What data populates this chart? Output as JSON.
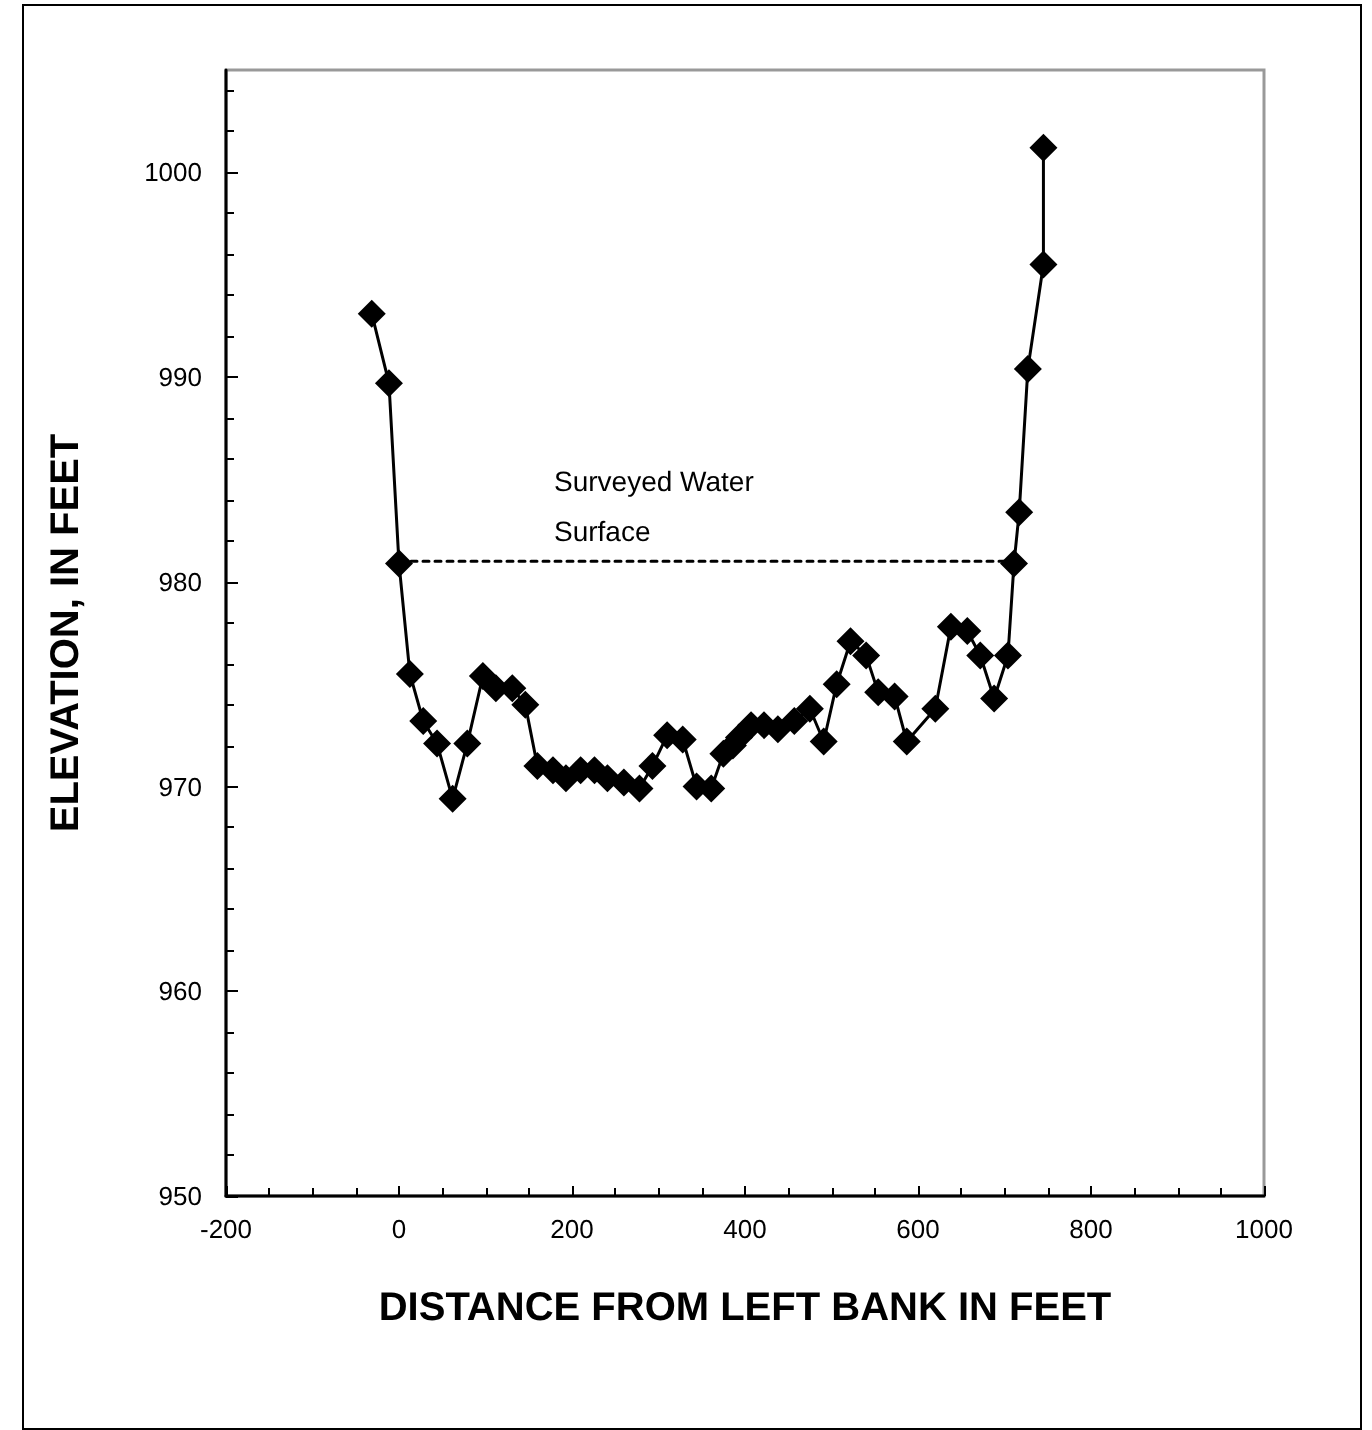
{
  "chart_data": {
    "type": "line",
    "xlabel": "DISTANCE FROM LEFT BANK IN FEET",
    "ylabel": "ELEVATION, IN FEET",
    "xlim": [
      -200,
      1000
    ],
    "xticks": [
      -200,
      0,
      200,
      400,
      600,
      800,
      1000
    ],
    "ylim": [
      950,
      1005
    ],
    "yticks": [
      950,
      960,
      970,
      980,
      990,
      1000
    ],
    "grid": false,
    "series": [
      {
        "color": "#000000",
        "marker": "diamond",
        "line_style": "solid",
        "x": [
          -31.5,
          -11.6,
          0,
          12.6,
          28,
          44,
          62,
          79,
          97,
          112,
          131,
          146,
          160,
          178,
          193,
          210,
          226,
          241,
          260,
          278,
          293,
          310,
          328,
          344,
          361,
          375,
          386,
          393,
          407,
          422,
          438,
          457,
          475,
          491,
          506,
          522,
          540,
          554,
          573,
          587,
          620,
          638,
          657,
          672,
          688,
          704,
          711,
          717,
          727,
          745,
          745
        ],
        "values": [
          993.1,
          989.7,
          980.9,
          975.5,
          973.2,
          972.1,
          969.4,
          972.1,
          975.4,
          974.8,
          974.8,
          974.0,
          971.0,
          970.8,
          970.4,
          970.8,
          970.8,
          970.4,
          970.2,
          969.9,
          971.0,
          972.5,
          972.3,
          970.0,
          969.9,
          971.6,
          972.0,
          972.4,
          973.0,
          973.0,
          972.8,
          973.2,
          973.8,
          972.2,
          975.0,
          977.1,
          976.4,
          974.6,
          974.4,
          972.2,
          973.8,
          977.8,
          977.6,
          976.4,
          974.3,
          976.4,
          980.9,
          983.4,
          990.4,
          995.5,
          1001.2
        ]
      },
      {
        "color": "#000000",
        "marker": "none",
        "line_style": "dotted",
        "x": [
          0,
          711
        ],
        "values": [
          981,
          981
        ]
      }
    ],
    "annotations": [
      "Surveyed Water\nSurface"
    ]
  }
}
